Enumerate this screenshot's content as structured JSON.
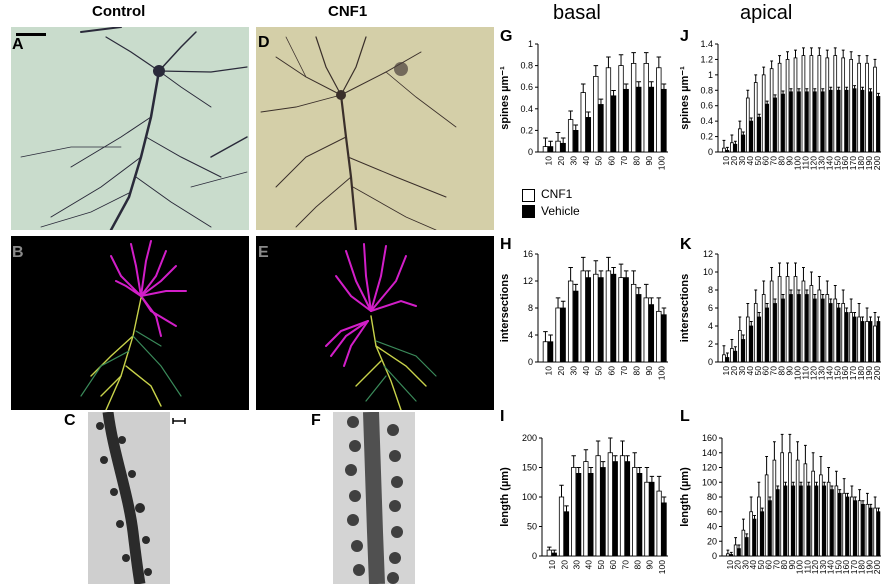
{
  "columns": {
    "control": "Control",
    "cnf1": "CNF1"
  },
  "regions": {
    "basal": "basal",
    "apical": "apical"
  },
  "panel_labels": {
    "A": "A",
    "B": "B",
    "C": "C",
    "D": "D",
    "E": "E",
    "F": "F",
    "G": "G",
    "H": "H",
    "I": "I",
    "J": "J",
    "K": "K",
    "L": "L"
  },
  "legend": {
    "cnf1": "CNF1",
    "vehicle": "Vehicle"
  },
  "colors": {
    "cnf1_fill": "#ffffff",
    "vehicle_fill": "#000000",
    "photo_control_bg": "#c9dccc",
    "photo_cnf1_bg": "#d4cfa8",
    "trace_bg": "#000000",
    "trace_basal": "#d21ec8",
    "trace_apical": "#c8d24a"
  },
  "chart_data": [
    {
      "id": "G",
      "type": "bar",
      "region": "basal",
      "ylabel": "spines µm⁻¹",
      "ylim": [
        0,
        1
      ],
      "yticks": [
        0,
        0.2,
        0.4,
        0.6,
        0.8,
        1
      ],
      "categories": [
        "10",
        "20",
        "30",
        "40",
        "50",
        "60",
        "70",
        "80",
        "90",
        "100"
      ],
      "series": [
        {
          "name": "CNF1",
          "values": [
            0.05,
            0.1,
            0.3,
            0.55,
            0.7,
            0.78,
            0.8,
            0.82,
            0.82,
            0.78
          ],
          "err": [
            0.08,
            0.08,
            0.08,
            0.08,
            0.1,
            0.1,
            0.1,
            0.1,
            0.1,
            0.1
          ]
        },
        {
          "name": "Vehicle",
          "values": [
            0.05,
            0.08,
            0.2,
            0.32,
            0.44,
            0.52,
            0.58,
            0.6,
            0.6,
            0.58
          ],
          "err": [
            0.05,
            0.05,
            0.05,
            0.05,
            0.05,
            0.05,
            0.05,
            0.05,
            0.05,
            0.05
          ]
        }
      ]
    },
    {
      "id": "J",
      "type": "bar",
      "region": "apical",
      "ylabel": "spines µm⁻¹",
      "ylim": [
        0,
        1.4
      ],
      "yticks": [
        0,
        0.2,
        0.4,
        0.6,
        0.8,
        1,
        1.2,
        1.4
      ],
      "categories": [
        "10",
        "20",
        "30",
        "40",
        "50",
        "60",
        "70",
        "80",
        "90",
        "100",
        "110",
        "120",
        "130",
        "140",
        "150",
        "160",
        "170",
        "180",
        "190",
        "200"
      ],
      "series": [
        {
          "name": "CNF1",
          "values": [
            0.05,
            0.12,
            0.3,
            0.7,
            0.9,
            1.0,
            1.08,
            1.15,
            1.2,
            1.22,
            1.25,
            1.25,
            1.25,
            1.22,
            1.25,
            1.22,
            1.2,
            1.15,
            1.15,
            1.1
          ],
          "err": [
            0.1,
            0.1,
            0.1,
            0.1,
            0.1,
            0.1,
            0.1,
            0.1,
            0.1,
            0.1,
            0.1,
            0.1,
            0.1,
            0.1,
            0.1,
            0.1,
            0.1,
            0.1,
            0.1,
            0.1
          ]
        },
        {
          "name": "Vehicle",
          "values": [
            0.02,
            0.1,
            0.22,
            0.4,
            0.45,
            0.62,
            0.7,
            0.75,
            0.78,
            0.78,
            0.78,
            0.78,
            0.78,
            0.8,
            0.8,
            0.8,
            0.82,
            0.8,
            0.78,
            0.72
          ],
          "err": [
            0.04,
            0.04,
            0.04,
            0.04,
            0.04,
            0.04,
            0.04,
            0.04,
            0.04,
            0.04,
            0.04,
            0.04,
            0.04,
            0.04,
            0.04,
            0.04,
            0.04,
            0.04,
            0.04,
            0.04
          ]
        }
      ]
    },
    {
      "id": "H",
      "type": "bar",
      "region": "basal",
      "ylabel": "intersections",
      "ylim": [
        0,
        16
      ],
      "yticks": [
        0,
        4,
        8,
        12,
        16
      ],
      "categories": [
        "10",
        "20",
        "30",
        "40",
        "50",
        "60",
        "70",
        "80",
        "90",
        "100"
      ],
      "series": [
        {
          "name": "CNF1",
          "values": [
            3,
            8,
            12,
            13.5,
            13,
            13.5,
            12.5,
            11.5,
            9.5,
            7.5
          ],
          "err": [
            1.5,
            1.5,
            2,
            2,
            2,
            2,
            2,
            2,
            2,
            2
          ]
        },
        {
          "name": "Vehicle",
          "values": [
            3,
            8,
            10.5,
            12.5,
            12.5,
            13,
            12.5,
            10,
            8.5,
            7
          ],
          "err": [
            1,
            1,
            1,
            1,
            1,
            1,
            1,
            1,
            1,
            1
          ]
        }
      ]
    },
    {
      "id": "K",
      "type": "bar",
      "region": "apical",
      "ylabel": "intersections",
      "ylim": [
        0,
        12
      ],
      "yticks": [
        0,
        2,
        4,
        6,
        8,
        10,
        12
      ],
      "categories": [
        "10",
        "20",
        "30",
        "40",
        "50",
        "60",
        "70",
        "80",
        "90",
        "100",
        "110",
        "120",
        "130",
        "140",
        "150",
        "160",
        "170",
        "180",
        "190",
        "200"
      ],
      "series": [
        {
          "name": "CNF1",
          "values": [
            0.8,
            1.5,
            3.5,
            5,
            6.5,
            7.5,
            9,
            9.5,
            9.5,
            9.5,
            9,
            8.5,
            8,
            7.5,
            7,
            6.5,
            5.5,
            5,
            4.5,
            4
          ],
          "err": [
            1,
            1,
            1.5,
            1.5,
            1.5,
            1.5,
            1.5,
            1.5,
            1.5,
            1.5,
            1.5,
            1.5,
            1.5,
            1.5,
            1.5,
            1.5,
            1.5,
            1.5,
            1.5,
            1.5
          ]
        },
        {
          "name": "Vehicle",
          "values": [
            0.5,
            1.2,
            2.5,
            4,
            5,
            6,
            6.5,
            7,
            7.5,
            7.5,
            7.5,
            7,
            7,
            6.5,
            6,
            5.5,
            5,
            4.5,
            4.5,
            4.5
          ],
          "err": [
            0.5,
            0.5,
            0.5,
            0.5,
            0.5,
            0.5,
            0.5,
            0.5,
            0.5,
            0.5,
            0.5,
            0.5,
            0.5,
            0.5,
            0.5,
            0.5,
            0.5,
            0.5,
            0.5,
            0.5
          ]
        }
      ]
    },
    {
      "id": "I",
      "type": "bar",
      "region": "basal",
      "ylabel": "length (µm)",
      "ylim": [
        0,
        200
      ],
      "yticks": [
        0,
        50,
        100,
        150,
        200
      ],
      "categories": [
        "10",
        "20",
        "30",
        "40",
        "50",
        "60",
        "70",
        "80",
        "90",
        "100"
      ],
      "series": [
        {
          "name": "CNF1",
          "values": [
            10,
            100,
            150,
            160,
            170,
            175,
            170,
            150,
            125,
            110
          ],
          "err": [
            5,
            20,
            20,
            20,
            25,
            25,
            25,
            25,
            25,
            25
          ]
        },
        {
          "name": "Vehicle",
          "values": [
            5,
            75,
            140,
            140,
            150,
            160,
            160,
            140,
            125,
            90
          ],
          "err": [
            5,
            10,
            10,
            10,
            10,
            10,
            10,
            10,
            10,
            10
          ]
        }
      ]
    },
    {
      "id": "L",
      "type": "bar",
      "region": "apical",
      "ylabel": "length (µm)",
      "ylim": [
        0,
        160
      ],
      "yticks": [
        0,
        20,
        40,
        60,
        80,
        100,
        120,
        140,
        160
      ],
      "categories": [
        "10",
        "20",
        "30",
        "40",
        "50",
        "60",
        "70",
        "80",
        "90",
        "100",
        "110",
        "120",
        "130",
        "140",
        "150",
        "160",
        "170",
        "180",
        "190",
        "200"
      ],
      "series": [
        {
          "name": "CNF1",
          "values": [
            3,
            15,
            35,
            60,
            80,
            110,
            130,
            140,
            140,
            130,
            125,
            115,
            110,
            100,
            95,
            85,
            80,
            75,
            70,
            65
          ],
          "err": [
            5,
            10,
            15,
            20,
            20,
            25,
            25,
            25,
            25,
            25,
            25,
            25,
            25,
            20,
            20,
            20,
            15,
            15,
            15,
            15
          ]
        },
        {
          "name": "Vehicle",
          "values": [
            2,
            10,
            25,
            50,
            60,
            75,
            90,
            95,
            95,
            95,
            95,
            95,
            95,
            90,
            85,
            80,
            75,
            70,
            65,
            60
          ],
          "err": [
            3,
            5,
            5,
            5,
            5,
            5,
            5,
            5,
            5,
            5,
            5,
            5,
            5,
            5,
            5,
            5,
            5,
            5,
            5,
            5
          ]
        }
      ]
    }
  ]
}
